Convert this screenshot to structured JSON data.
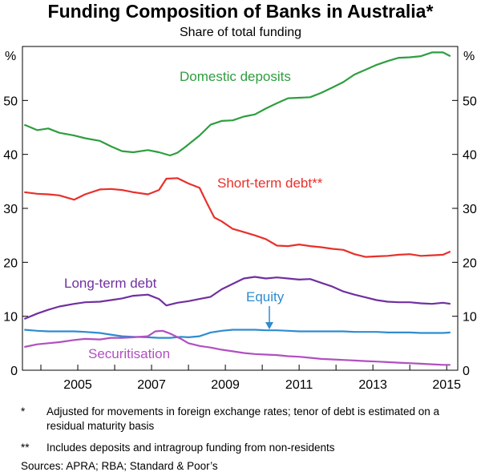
{
  "title": "Funding Composition of Banks in Australia*",
  "subtitle": "Share of total funding",
  "footnotes": [
    {
      "mark": "*",
      "text": "Adjusted for movements in foreign exchange rates; tenor of debt is estimated on a residual maturity basis"
    },
    {
      "mark": "**",
      "text": "Includes deposits and intragroup funding from non-residents"
    }
  ],
  "sources": "Sources:   APRA; RBA; Standard & Poor’s",
  "chart_data": {
    "type": "line",
    "title": "Funding Composition of Banks in Australia*",
    "subtitle": "Share of total funding",
    "y_unit_left": "%",
    "y_unit_right": "%",
    "ylim": [
      0,
      60
    ],
    "xlim": [
      2003.5,
      2015.3
    ],
    "y_ticks": [
      0,
      10,
      20,
      30,
      40,
      50
    ],
    "x_ticks": [
      2005,
      2007,
      2009,
      2011,
      2013,
      2015
    ],
    "grid": false,
    "annotations": [
      {
        "text": "Equity",
        "points_to": "Equity",
        "x": 2010.4
      }
    ],
    "series": [
      {
        "name": "Domestic deposits",
        "color": "#2e9e3f",
        "points": [
          [
            2003.55,
            45.5
          ],
          [
            2003.9,
            44.5
          ],
          [
            2004.2,
            44.8
          ],
          [
            2004.5,
            44
          ],
          [
            2004.9,
            43.5
          ],
          [
            2005.2,
            43
          ],
          [
            2005.6,
            42.5
          ],
          [
            2005.9,
            41.5
          ],
          [
            2006.2,
            40.6
          ],
          [
            2006.5,
            40.4
          ],
          [
            2006.9,
            40.8
          ],
          [
            2007.2,
            40.4
          ],
          [
            2007.5,
            39.8
          ],
          [
            2007.7,
            40.3
          ],
          [
            2007.9,
            41.3
          ],
          [
            2008.3,
            43.5
          ],
          [
            2008.6,
            45.5
          ],
          [
            2008.9,
            46.2
          ],
          [
            2009.2,
            46.3
          ],
          [
            2009.5,
            47.0
          ],
          [
            2009.8,
            47.4
          ],
          [
            2010.1,
            48.5
          ],
          [
            2010.4,
            49.5
          ],
          [
            2010.7,
            50.4
          ],
          [
            2011.0,
            50.5
          ],
          [
            2011.3,
            50.6
          ],
          [
            2011.6,
            51.4
          ],
          [
            2011.9,
            52.4
          ],
          [
            2012.2,
            53.4
          ],
          [
            2012.5,
            54.8
          ],
          [
            2012.8,
            55.7
          ],
          [
            2013.1,
            56.6
          ],
          [
            2013.4,
            57.3
          ],
          [
            2013.7,
            57.9
          ],
          [
            2014.0,
            58.0
          ],
          [
            2014.3,
            58.2
          ],
          [
            2014.6,
            58.9
          ],
          [
            2014.9,
            58.9
          ],
          [
            2015.1,
            58.2
          ]
        ]
      },
      {
        "name": "Short-term debt**",
        "color": "#e8302a",
        "points": [
          [
            2003.55,
            33
          ],
          [
            2003.9,
            32.7
          ],
          [
            2004.2,
            32.6
          ],
          [
            2004.5,
            32.4
          ],
          [
            2004.9,
            31.6
          ],
          [
            2005.2,
            32.6
          ],
          [
            2005.6,
            33.5
          ],
          [
            2005.9,
            33.6
          ],
          [
            2006.2,
            33.4
          ],
          [
            2006.5,
            33.0
          ],
          [
            2006.9,
            32.6
          ],
          [
            2007.2,
            33.4
          ],
          [
            2007.4,
            35.5
          ],
          [
            2007.7,
            35.6
          ],
          [
            2008.0,
            34.6
          ],
          [
            2008.3,
            33.8
          ],
          [
            2008.5,
            31.0
          ],
          [
            2008.7,
            28.3
          ],
          [
            2008.9,
            27.6
          ],
          [
            2009.2,
            26.2
          ],
          [
            2009.5,
            25.6
          ],
          [
            2009.8,
            25.0
          ],
          [
            2010.1,
            24.3
          ],
          [
            2010.4,
            23.1
          ],
          [
            2010.7,
            23.0
          ],
          [
            2011.0,
            23.3
          ],
          [
            2011.3,
            23.0
          ],
          [
            2011.6,
            22.8
          ],
          [
            2011.9,
            22.5
          ],
          [
            2012.2,
            22.3
          ],
          [
            2012.5,
            21.5
          ],
          [
            2012.8,
            21.0
          ],
          [
            2013.1,
            21.1
          ],
          [
            2013.4,
            21.2
          ],
          [
            2013.7,
            21.4
          ],
          [
            2014.0,
            21.5
          ],
          [
            2014.3,
            21.2
          ],
          [
            2014.6,
            21.3
          ],
          [
            2014.9,
            21.4
          ],
          [
            2015.1,
            22.0
          ]
        ]
      },
      {
        "name": "Long-term debt",
        "color": "#7030a0",
        "points": [
          [
            2003.55,
            9.5
          ],
          [
            2003.9,
            10.5
          ],
          [
            2004.2,
            11.2
          ],
          [
            2004.5,
            11.8
          ],
          [
            2004.9,
            12.3
          ],
          [
            2005.2,
            12.6
          ],
          [
            2005.6,
            12.7
          ],
          [
            2005.9,
            13.0
          ],
          [
            2006.2,
            13.3
          ],
          [
            2006.5,
            13.8
          ],
          [
            2006.9,
            14.0
          ],
          [
            2007.2,
            13.2
          ],
          [
            2007.4,
            12.0
          ],
          [
            2007.7,
            12.5
          ],
          [
            2008.0,
            12.8
          ],
          [
            2008.3,
            13.2
          ],
          [
            2008.6,
            13.6
          ],
          [
            2008.9,
            15.0
          ],
          [
            2009.2,
            16.0
          ],
          [
            2009.5,
            17.0
          ],
          [
            2009.8,
            17.3
          ],
          [
            2010.1,
            17.0
          ],
          [
            2010.4,
            17.2
          ],
          [
            2010.7,
            17.0
          ],
          [
            2011.0,
            16.8
          ],
          [
            2011.3,
            16.9
          ],
          [
            2011.6,
            16.2
          ],
          [
            2011.9,
            15.5
          ],
          [
            2012.2,
            14.6
          ],
          [
            2012.5,
            14.0
          ],
          [
            2012.8,
            13.5
          ],
          [
            2013.1,
            13.0
          ],
          [
            2013.4,
            12.7
          ],
          [
            2013.7,
            12.6
          ],
          [
            2014.0,
            12.6
          ],
          [
            2014.3,
            12.4
          ],
          [
            2014.6,
            12.3
          ],
          [
            2014.9,
            12.5
          ],
          [
            2015.1,
            12.3
          ]
        ]
      },
      {
        "name": "Equity",
        "color": "#2e8ccf",
        "points": [
          [
            2003.55,
            7.5
          ],
          [
            2003.9,
            7.3
          ],
          [
            2004.2,
            7.2
          ],
          [
            2004.5,
            7.2
          ],
          [
            2004.9,
            7.2
          ],
          [
            2005.2,
            7.1
          ],
          [
            2005.6,
            6.9
          ],
          [
            2005.9,
            6.6
          ],
          [
            2006.2,
            6.3
          ],
          [
            2006.5,
            6.2
          ],
          [
            2006.9,
            6.1
          ],
          [
            2007.2,
            6.0
          ],
          [
            2007.5,
            6.0
          ],
          [
            2007.8,
            6.2
          ],
          [
            2008.0,
            6.1
          ],
          [
            2008.3,
            6.3
          ],
          [
            2008.6,
            7.0
          ],
          [
            2008.9,
            7.3
          ],
          [
            2009.2,
            7.5
          ],
          [
            2009.5,
            7.5
          ],
          [
            2009.8,
            7.5
          ],
          [
            2010.1,
            7.4
          ],
          [
            2010.4,
            7.4
          ],
          [
            2010.7,
            7.3
          ],
          [
            2011.0,
            7.2
          ],
          [
            2011.3,
            7.2
          ],
          [
            2011.6,
            7.2
          ],
          [
            2011.9,
            7.2
          ],
          [
            2012.2,
            7.2
          ],
          [
            2012.5,
            7.1
          ],
          [
            2012.8,
            7.1
          ],
          [
            2013.1,
            7.1
          ],
          [
            2013.4,
            7.0
          ],
          [
            2013.7,
            7.0
          ],
          [
            2014.0,
            7.0
          ],
          [
            2014.3,
            6.9
          ],
          [
            2014.6,
            6.9
          ],
          [
            2014.9,
            6.9
          ],
          [
            2015.1,
            7.0
          ]
        ]
      },
      {
        "name": "Securitisation",
        "color": "#b050c0",
        "points": [
          [
            2003.55,
            4.3
          ],
          [
            2003.9,
            4.8
          ],
          [
            2004.2,
            5.0
          ],
          [
            2004.5,
            5.2
          ],
          [
            2004.9,
            5.6
          ],
          [
            2005.2,
            5.8
          ],
          [
            2005.6,
            5.7
          ],
          [
            2005.9,
            6.0
          ],
          [
            2006.2,
            6.0
          ],
          [
            2006.5,
            6.1
          ],
          [
            2006.9,
            6.3
          ],
          [
            2007.1,
            7.2
          ],
          [
            2007.3,
            7.3
          ],
          [
            2007.5,
            6.8
          ],
          [
            2007.8,
            5.8
          ],
          [
            2008.0,
            5.0
          ],
          [
            2008.3,
            4.5
          ],
          [
            2008.6,
            4.2
          ],
          [
            2008.9,
            3.8
          ],
          [
            2009.2,
            3.5
          ],
          [
            2009.5,
            3.2
          ],
          [
            2009.8,
            3.0
          ],
          [
            2010.1,
            2.9
          ],
          [
            2010.4,
            2.8
          ],
          [
            2010.7,
            2.6
          ],
          [
            2011.0,
            2.5
          ],
          [
            2011.3,
            2.3
          ],
          [
            2011.6,
            2.1
          ],
          [
            2011.9,
            2.0
          ],
          [
            2012.2,
            1.9
          ],
          [
            2012.5,
            1.8
          ],
          [
            2012.8,
            1.7
          ],
          [
            2013.1,
            1.6
          ],
          [
            2013.4,
            1.5
          ],
          [
            2013.7,
            1.4
          ],
          [
            2014.0,
            1.3
          ],
          [
            2014.3,
            1.2
          ],
          [
            2014.6,
            1.1
          ],
          [
            2014.9,
            1.0
          ],
          [
            2015.1,
            1.0
          ]
        ]
      }
    ]
  }
}
